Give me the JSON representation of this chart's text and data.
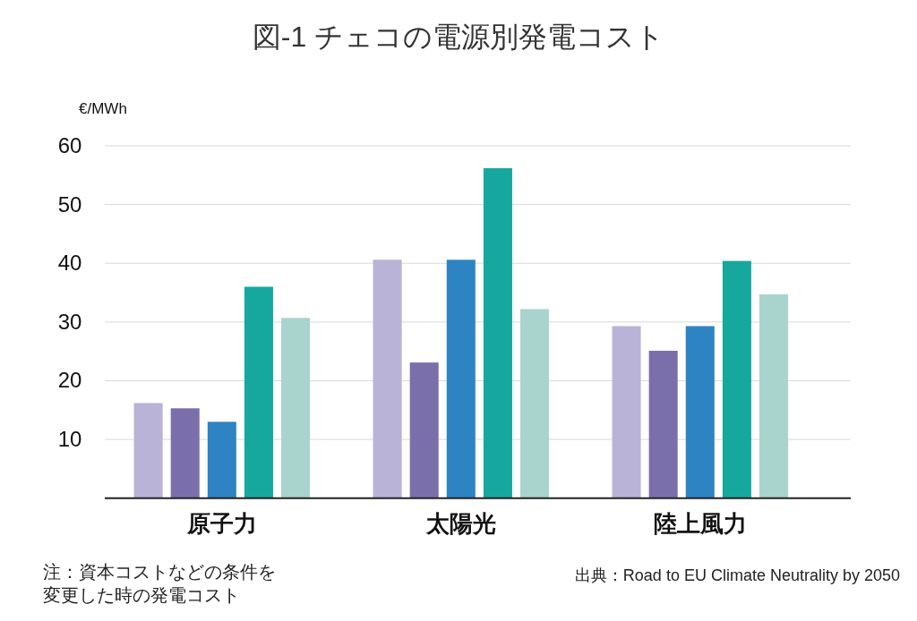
{
  "chart_data": {
    "type": "bar",
    "title": "図-1 チェコの電源別発電コスト",
    "ylabel": "€/MWh",
    "categories": [
      "原子力",
      "太陽光",
      "陸上風力"
    ],
    "series": [
      {
        "color": "#b9b3d7",
        "values": [
          16.2,
          40.6,
          29.3
        ]
      },
      {
        "color": "#7b6fab",
        "values": [
          15.3,
          23.1,
          25.1
        ]
      },
      {
        "color": "#2e84c3",
        "values": [
          13.0,
          40.6,
          29.3
        ]
      },
      {
        "color": "#16a89e",
        "values": [
          36.0,
          56.2,
          40.4
        ]
      },
      {
        "color": "#a9d4cd",
        "values": [
          30.7,
          32.2,
          34.7
        ]
      }
    ],
    "ylim": [
      0,
      60
    ],
    "yticks": [
      10,
      20,
      30,
      40,
      50,
      60
    ],
    "grid": "y",
    "annotations": [
      "注：資本コストなどの条件を変更した時の発電コスト",
      "出典：Road to EU Climate Neutrality by 2050"
    ]
  }
}
